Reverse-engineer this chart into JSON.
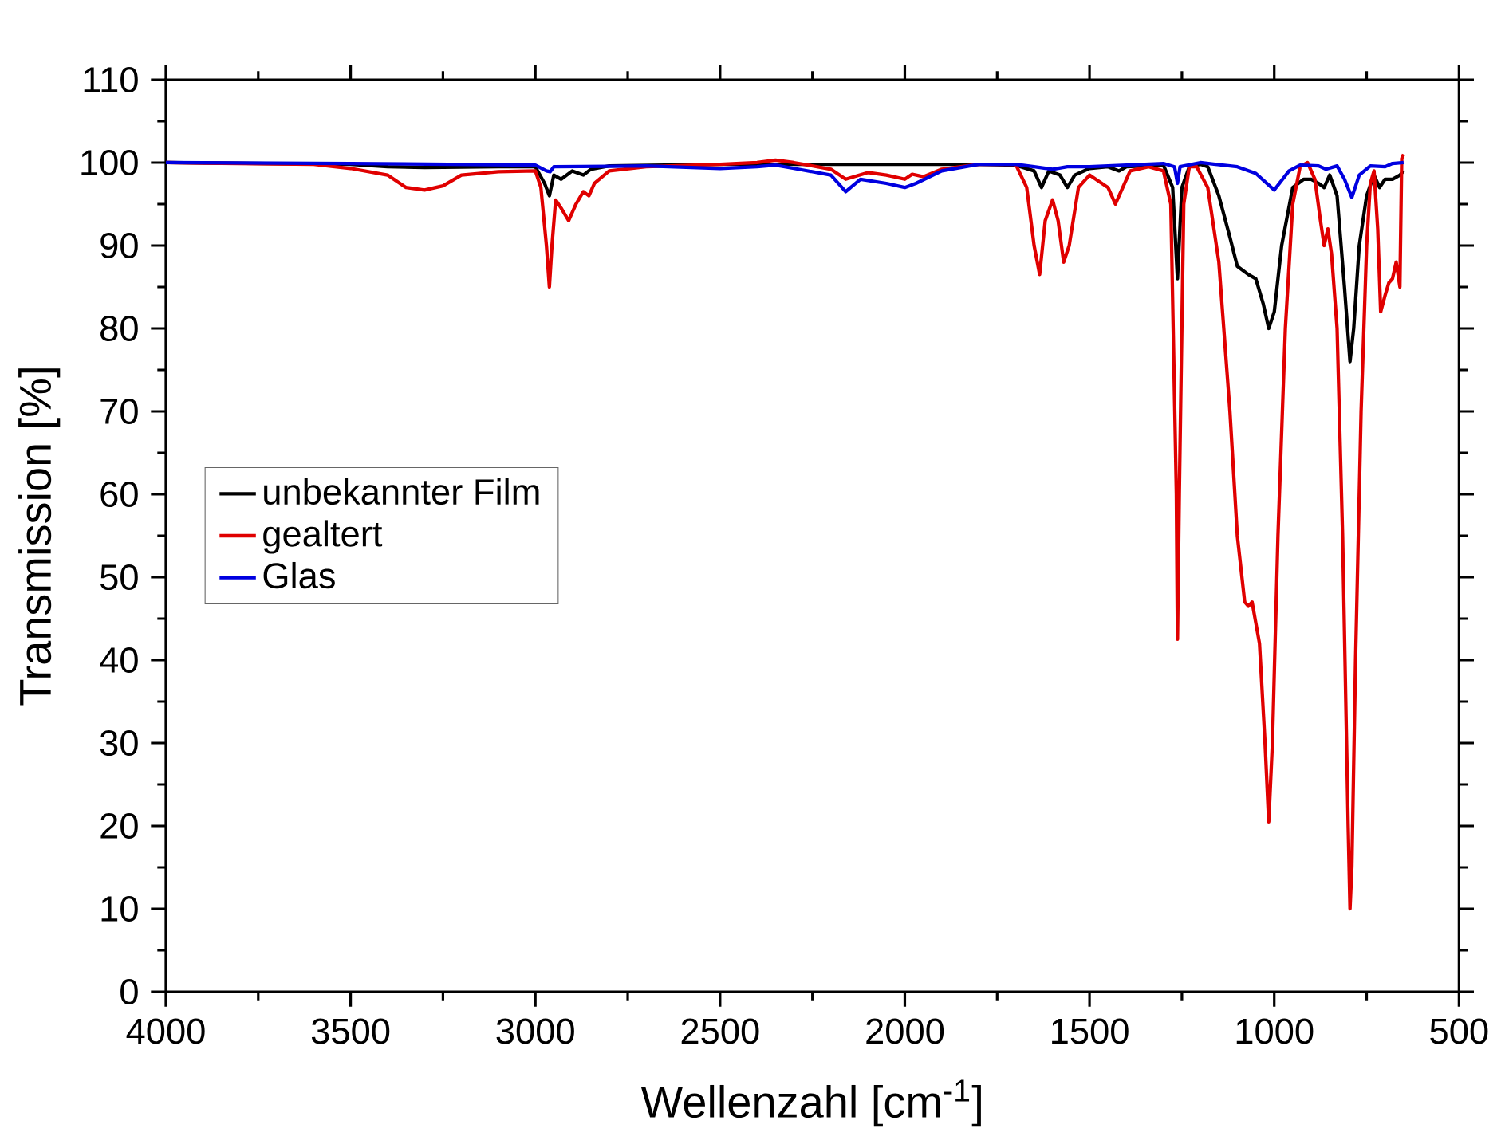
{
  "chart_data": {
    "type": "line",
    "xlabel": "Wellenzahl [cm$^{-1}$]",
    "ylabel": "Transmission [%]",
    "xlim": [
      4000,
      500
    ],
    "xticks": [
      4000,
      3500,
      3000,
      2500,
      2000,
      1500,
      1000,
      500
    ],
    "ylim": [
      0,
      110
    ],
    "yticks": [
      0,
      10,
      20,
      30,
      40,
      50,
      60,
      70,
      80,
      90,
      100,
      110
    ],
    "legend": "left",
    "grid": false,
    "series": [
      {
        "name": "unbekannter Film",
        "color": "#000000",
        "x": [
          4000,
          3500,
          3400,
          3300,
          3100,
          3000,
          2975,
          2962,
          2950,
          2930,
          2900,
          2870,
          2850,
          2800,
          2500,
          1800,
          1700,
          1650,
          1630,
          1610,
          1580,
          1560,
          1540,
          1500,
          1450,
          1420,
          1400,
          1300,
          1275,
          1262,
          1250,
          1230,
          1200,
          1180,
          1150,
          1120,
          1100,
          1070,
          1050,
          1030,
          1015,
          1000,
          980,
          950,
          920,
          900,
          880,
          865,
          850,
          830,
          810,
          795,
          785,
          770,
          750,
          730,
          715,
          700,
          680,
          660,
          650
        ],
        "values": [
          100,
          99.8,
          99.5,
          99.4,
          99.5,
          99.5,
          97.5,
          96,
          98.5,
          98,
          99,
          98.5,
          99.2,
          99.6,
          99.8,
          99.8,
          99.7,
          99,
          97,
          99,
          98.5,
          97,
          98.5,
          99.3,
          99.5,
          99,
          99.5,
          99.7,
          97,
          86,
          97,
          99.5,
          99.8,
          99.5,
          96,
          91,
          87.5,
          86.5,
          86,
          83,
          80,
          82,
          90,
          97,
          98,
          98,
          97.5,
          97,
          98.5,
          96,
          85,
          76,
          80,
          90,
          96,
          98.5,
          97,
          98,
          98,
          98.5,
          99
        ]
      },
      {
        "name": "gealtert",
        "color": "#e00000",
        "x": [
          4000,
          3600,
          3500,
          3400,
          3350,
          3300,
          3250,
          3200,
          3100,
          3000,
          2985,
          2970,
          2962,
          2955,
          2945,
          2930,
          2910,
          2890,
          2870,
          2855,
          2840,
          2800,
          2700,
          2500,
          2400,
          2350,
          2300,
          2200,
          2160,
          2100,
          2050,
          2000,
          1980,
          1950,
          1900,
          1800,
          1700,
          1670,
          1650,
          1635,
          1620,
          1600,
          1585,
          1570,
          1555,
          1530,
          1500,
          1450,
          1430,
          1410,
          1390,
          1340,
          1300,
          1280,
          1265,
          1262,
          1257,
          1245,
          1230,
          1210,
          1180,
          1150,
          1120,
          1100,
          1080,
          1070,
          1060,
          1040,
          1025,
          1015,
          1005,
          990,
          970,
          950,
          930,
          910,
          890,
          875,
          865,
          855,
          845,
          830,
          815,
          800,
          795,
          790,
          780,
          765,
          750,
          740,
          730,
          720,
          712,
          700,
          690,
          680,
          670,
          660,
          655,
          650
        ],
        "values": [
          100,
          99.8,
          99.3,
          98.5,
          97,
          96.7,
          97.2,
          98.5,
          98.9,
          99,
          97,
          90,
          85,
          90,
          95.5,
          94.5,
          93,
          95,
          96.5,
          96,
          97.5,
          99,
          99.5,
          99.8,
          100,
          100.3,
          100,
          99.2,
          98,
          98.8,
          98.5,
          98,
          98.6,
          98.3,
          99.2,
          99.8,
          99.8,
          97,
          90,
          86.5,
          93,
          95.5,
          93,
          88,
          90,
          97,
          98.5,
          97,
          95,
          97,
          99,
          99.5,
          99,
          95,
          60,
          42.5,
          60,
          95,
          99.5,
          99.5,
          97,
          88,
          70,
          55,
          47,
          46.5,
          47,
          42,
          30,
          20.5,
          30,
          55,
          80,
          95,
          99.5,
          100,
          98,
          93,
          90,
          92,
          89,
          80,
          55,
          20,
          10,
          15,
          40,
          70,
          90,
          97.5,
          99,
          92,
          82,
          84,
          85.5,
          86,
          88,
          85,
          100.5,
          101
        ]
      },
      {
        "name": "Glas",
        "color": "#0000e0",
        "x": [
          4000,
          3500,
          3000,
          2970,
          2960,
          2950,
          2700,
          2500,
          2400,
          2350,
          2300,
          2200,
          2160,
          2120,
          2050,
          2000,
          1970,
          1900,
          1800,
          1700,
          1650,
          1600,
          1560,
          1500,
          1400,
          1300,
          1270,
          1262,
          1255,
          1200,
          1100,
          1050,
          1000,
          960,
          930,
          880,
          860,
          830,
          810,
          790,
          770,
          740,
          700,
          680,
          650
        ],
        "values": [
          100,
          99.9,
          99.7,
          99,
          98.9,
          99.5,
          99.6,
          99.3,
          99.5,
          99.7,
          99.3,
          98.5,
          96.5,
          98,
          97.5,
          97,
          97.5,
          99,
          99.8,
          99.8,
          99.5,
          99.2,
          99.5,
          99.5,
          99.7,
          99.9,
          99.5,
          97.5,
          99.5,
          100,
          99.5,
          98.7,
          96.7,
          99,
          99.7,
          99.6,
          99.2,
          99.6,
          98,
          95.8,
          98.5,
          99.6,
          99.5,
          99.9,
          100
        ]
      }
    ]
  }
}
